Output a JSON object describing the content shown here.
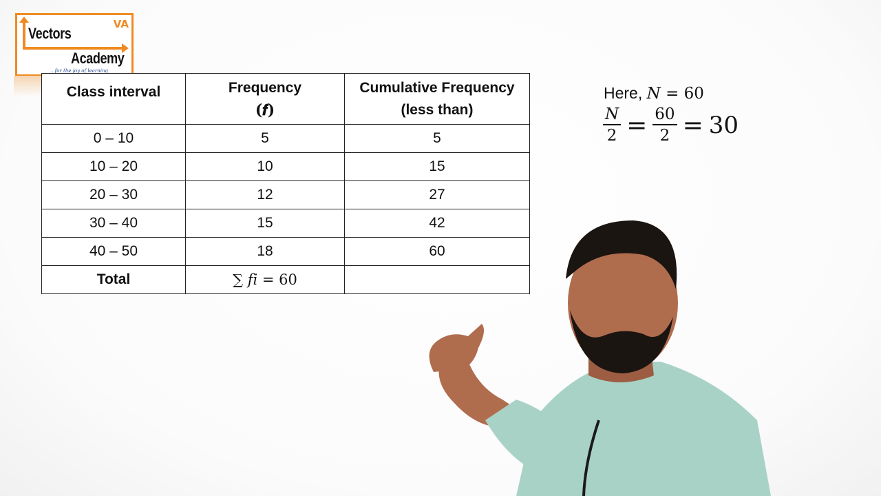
{
  "logo": {
    "line1": "Vectors",
    "line2": "Academy",
    "mark": "VA",
    "tagline": "...for the joy of learning"
  },
  "table": {
    "headers": {
      "class_interval": "Class interval",
      "frequency": "Frequency",
      "frequency_symbol": "(𝒇)",
      "cumulative_line1": "Cumulative Frequency",
      "cumulative_line2": "(less than)"
    },
    "rows": [
      {
        "interval": "0 – 10",
        "frequency": "5",
        "cumulative": "5"
      },
      {
        "interval": "10 – 20",
        "frequency": "10",
        "cumulative": "15"
      },
      {
        "interval": "20 – 30",
        "frequency": "12",
        "cumulative": "27"
      },
      {
        "interval": "30 – 40",
        "frequency": "15",
        "cumulative": "42"
      },
      {
        "interval": "40 – 50",
        "frequency": "18",
        "cumulative": "60"
      }
    ],
    "total_label": "Total",
    "total_value": "∑ 𝑓𝑖 = 60"
  },
  "notes": {
    "here_text": "Here, ",
    "here_expr": "𝑁 = 60",
    "frac1_num": "𝑁",
    "frac1_den": "2",
    "eq1": "=",
    "frac2_num": "60",
    "frac2_den": "2",
    "eq2": "=",
    "result": "30"
  },
  "colors": {
    "logo_accent": "#ef8a22",
    "tagline": "#1a3c8c",
    "shirt": "#a9d2c7",
    "skin": "#b06d4e",
    "hair": "#1b1512"
  }
}
